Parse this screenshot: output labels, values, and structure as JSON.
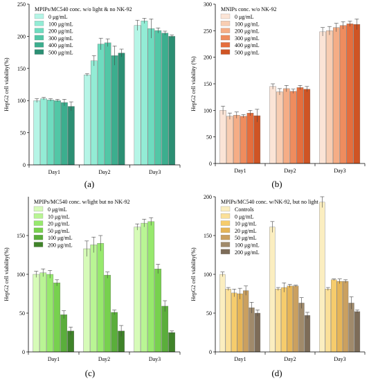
{
  "chart_data": [
    {
      "type": "bar",
      "panel_label": "(a)",
      "ylabel": "HepG2 cell viability(%)",
      "ylim": [
        0,
        250
      ],
      "yticks": [
        0,
        50,
        100,
        150,
        200,
        250
      ],
      "categories": [
        "Day1",
        "Day2",
        "Day3"
      ],
      "legend_title": "MPIPs/MC540 conc. w/o light & no NK-92",
      "legend_position": "top-left",
      "series": [
        {
          "name": "0 μg/mL",
          "color": "#b5f5e6",
          "values": [
            100,
            140,
            217
          ],
          "errors": [
            3,
            2,
            8
          ]
        },
        {
          "name": "100 μg/mL",
          "color": "#93ecd5",
          "values": [
            103,
            162,
            224
          ],
          "errors": [
            2,
            8,
            4
          ]
        },
        {
          "name": "200 μg/mL",
          "color": "#6edcbf",
          "values": [
            101,
            188,
            212
          ],
          "errors": [
            2,
            9,
            15
          ]
        },
        {
          "name": "300 μg/mL",
          "color": "#52c7a6",
          "values": [
            100,
            190,
            209
          ],
          "errors": [
            2,
            6,
            4
          ]
        },
        {
          "name": "400 μg/mL",
          "color": "#3cae8e",
          "values": [
            97,
            170,
            205
          ],
          "errors": [
            5,
            15,
            3
          ]
        },
        {
          "name": "500 μg/mL",
          "color": "#2b8f73",
          "values": [
            91,
            174,
            200
          ],
          "errors": [
            7,
            6,
            2
          ]
        }
      ]
    },
    {
      "type": "bar",
      "panel_label": "(b)",
      "ylabel": "HepG2 cell viability (%)",
      "ylim": [
        0,
        300
      ],
      "yticks": [
        0,
        50,
        100,
        150,
        200,
        250,
        300
      ],
      "categories": [
        "Day1",
        "Day2",
        "Day3"
      ],
      "legend_title": "MNIPs conc. w/o NK-92",
      "legend_position": "top-left",
      "series": [
        {
          "name": "0 μg/mL",
          "color": "#fbe4d6",
          "values": [
            100,
            145,
            248
          ],
          "errors": [
            8,
            5,
            8
          ]
        },
        {
          "name": "100 μg/mL",
          "color": "#f8cdb2",
          "values": [
            89,
            135,
            250
          ],
          "errors": [
            6,
            6,
            8
          ]
        },
        {
          "name": "200 μg/mL",
          "color": "#f5ad86",
          "values": [
            91,
            141,
            256
          ],
          "errors": [
            6,
            6,
            8
          ]
        },
        {
          "name": "300 μg/mL",
          "color": "#ef8c5e",
          "values": [
            89,
            136,
            260
          ],
          "errors": [
            3,
            4,
            7
          ]
        },
        {
          "name": "400 μg/mL",
          "color": "#e56e3d",
          "values": [
            95,
            143,
            263
          ],
          "errors": [
            5,
            4,
            5
          ]
        },
        {
          "name": "500 μg/mL",
          "color": "#cf5424",
          "values": [
            90,
            140,
            262
          ],
          "errors": [
            12,
            5,
            10
          ]
        }
      ]
    },
    {
      "type": "bar",
      "panel_label": "(c)",
      "ylabel": "HepG2 cell viability(%)",
      "ylim": [
        0,
        200
      ],
      "yticks": [
        0,
        50,
        100,
        150
      ],
      "categories": [
        "Day1",
        "Day2",
        "Day3"
      ],
      "legend_title": "MPIPs/MC540 conc. w/light but no NK-92",
      "legend_position": "top-left",
      "series": [
        {
          "name": "0 μg/mL",
          "color": "#d6fbb8",
          "values": [
            100,
            133,
            161
          ],
          "errors": [
            4,
            10,
            4
          ]
        },
        {
          "name": "10 μg/mL",
          "color": "#b9f594",
          "values": [
            102,
            138,
            166
          ],
          "errors": [
            5,
            10,
            5
          ]
        },
        {
          "name": "20 μg/mL",
          "color": "#97e96d",
          "values": [
            100,
            140,
            168
          ],
          "errors": [
            5,
            10,
            5
          ]
        },
        {
          "name": "50 μg/mL",
          "color": "#77d14e",
          "values": [
            89,
            99,
            107
          ],
          "errors": [
            4,
            4,
            6
          ]
        },
        {
          "name": "100 μg/mL",
          "color": "#5aae3b",
          "values": [
            48,
            51,
            59
          ],
          "errors": [
            5,
            3,
            7
          ]
        },
        {
          "name": "200 μg/mL",
          "color": "#3f8329",
          "values": [
            27,
            27,
            25
          ],
          "errors": [
            5,
            7,
            2
          ]
        }
      ]
    },
    {
      "type": "bar",
      "panel_label": "(d)",
      "ylabel": "HepG2 cell viability(%)",
      "ylim": [
        0,
        200
      ],
      "yticks": [
        0,
        50,
        100,
        150,
        200
      ],
      "categories": [
        "Day1",
        "Day2",
        "Day3"
      ],
      "legend_title": "MPIPs/MC540 conc. w/NK-92, but no light",
      "legend_position": "top-left",
      "series": [
        {
          "name": "Controls",
          "color": "#fbeec0",
          "values": [
            100,
            161,
            193
          ],
          "errors": [
            3,
            7,
            7
          ]
        },
        {
          "name": "0 μg/mL",
          "color": "#fbe099",
          "values": [
            81,
            81,
            81
          ],
          "errors": [
            2,
            2,
            2
          ]
        },
        {
          "name": "10 μg/mL",
          "color": "#f6cc6c",
          "values": [
            76,
            83,
            93
          ],
          "errors": [
            5,
            6,
            1
          ]
        },
        {
          "name": "20 μg/mL",
          "color": "#e6b557",
          "values": [
            75,
            85,
            91
          ],
          "errors": [
            7,
            2,
            3
          ]
        },
        {
          "name": "50 μg/mL",
          "color": "#caa060",
          "values": [
            79,
            85,
            91
          ],
          "errors": [
            6,
            1,
            2
          ]
        },
        {
          "name": "100 μg/mL",
          "color": "#a08a6b",
          "values": [
            57,
            63,
            63
          ],
          "errors": [
            7,
            7,
            8
          ]
        },
        {
          "name": "200 μg/mL",
          "color": "#7d6c58",
          "values": [
            50,
            47,
            52
          ],
          "errors": [
            4,
            4,
            2
          ]
        }
      ]
    }
  ]
}
